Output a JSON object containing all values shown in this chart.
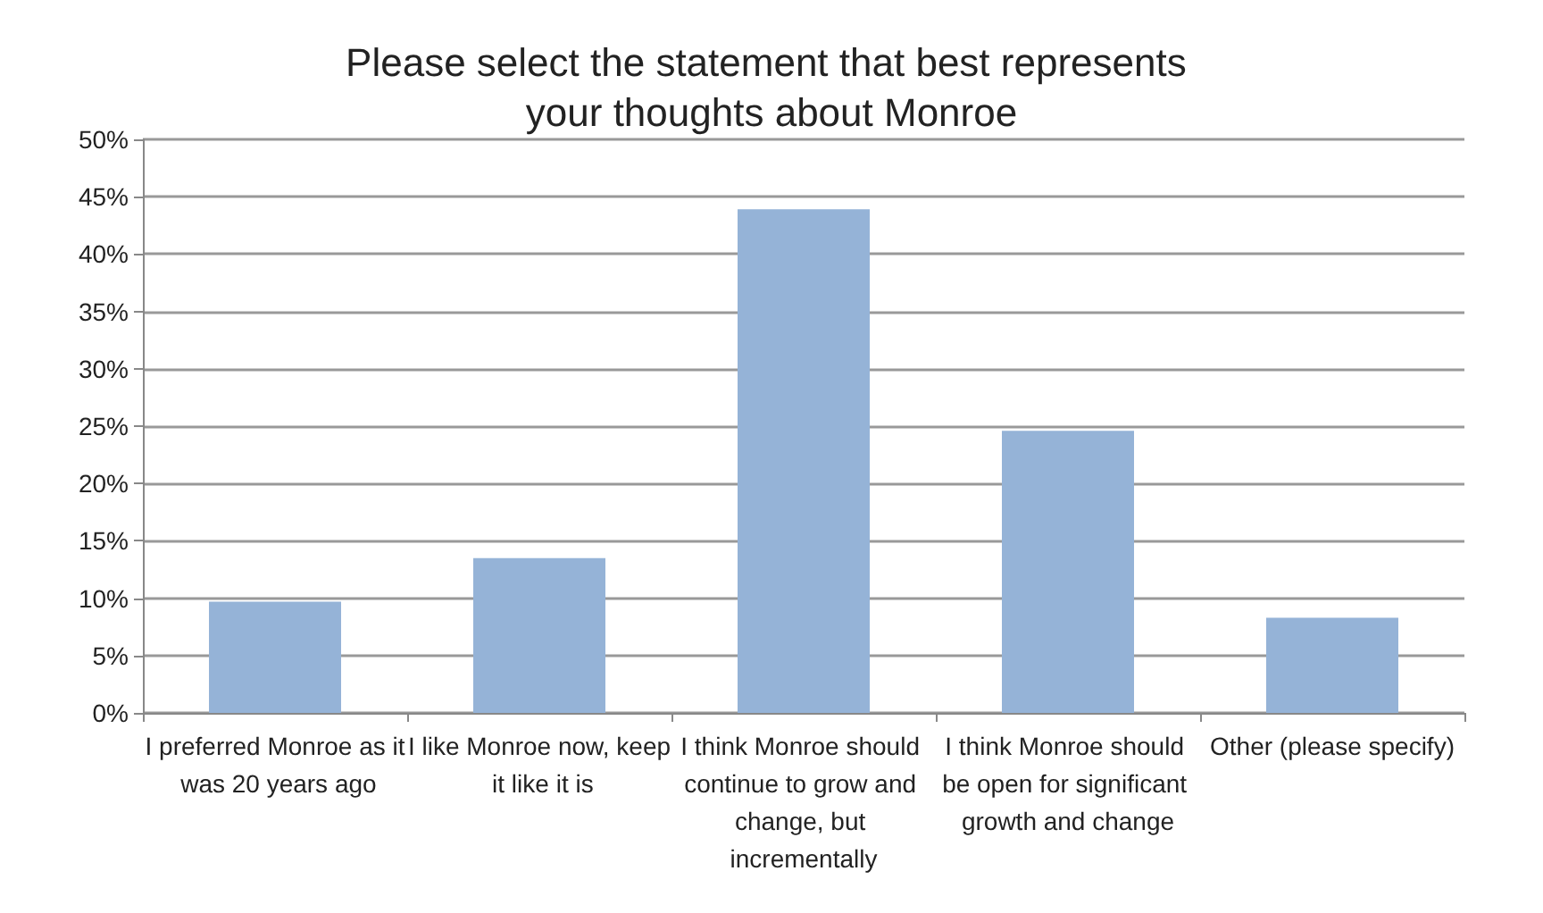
{
  "chart_data": {
    "type": "bar",
    "title": "Please select the statement that best represents your thoughts about Monroe",
    "categories": [
      "I preferred Monroe as it was 20 years ago",
      "I like Monroe now, keep it like it is",
      "I think Monroe should continue to grow and change, but incrementally",
      "I think Monroe should be open for significant growth and change",
      "Other (please specify)"
    ],
    "values": [
      9.7,
      13.5,
      43.9,
      24.6,
      8.3
    ],
    "color": "#95b3d7",
    "ylim": [
      0,
      50
    ],
    "yticks": [
      {
        "value": 0,
        "label": "0%"
      },
      {
        "value": 5,
        "label": "5%"
      },
      {
        "value": 10,
        "label": "10%"
      },
      {
        "value": 15,
        "label": "15%"
      },
      {
        "value": 20,
        "label": "20%"
      },
      {
        "value": 25,
        "label": "25%"
      },
      {
        "value": 30,
        "label": "30%"
      },
      {
        "value": 35,
        "label": "35%"
      },
      {
        "value": 40,
        "label": "40%"
      },
      {
        "value": 45,
        "label": "45%"
      },
      {
        "value": 50,
        "label": "50%"
      }
    ],
    "grid": "y"
  }
}
